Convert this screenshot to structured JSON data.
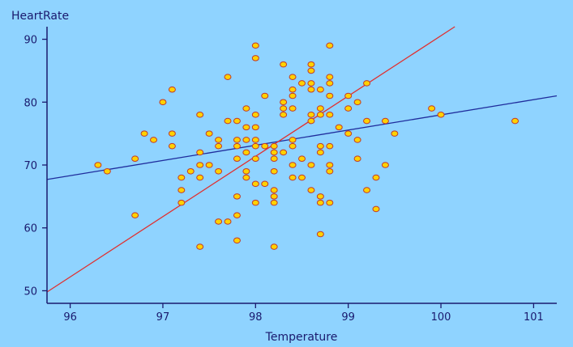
{
  "chart_data": {
    "type": "scatter",
    "title": "",
    "xlabel": "Temperature",
    "ylabel": "HeartRate",
    "xlim": [
      95.75,
      101.25
    ],
    "ylim": [
      48,
      92
    ],
    "x_ticks": [
      "96",
      "97",
      "98",
      "99",
      "100",
      "101"
    ],
    "y_ticks": [
      "50",
      "60",
      "70",
      "80",
      "90"
    ],
    "grid": false,
    "colors": {
      "background": "#8fd3ff",
      "axis": "#1a1a6e",
      "point_fill": "#ffd200",
      "point_stroke": "#c0392b",
      "blue_line": "#1f2c9c",
      "red_line": "#e03030"
    },
    "series": [
      {
        "points": [
          [
            96.3,
            70
          ],
          [
            96.4,
            69
          ],
          [
            96.7,
            71
          ],
          [
            96.7,
            62
          ],
          [
            96.8,
            75
          ],
          [
            96.9,
            74
          ],
          [
            97.0,
            80
          ],
          [
            97.1,
            82
          ],
          [
            97.1,
            75
          ],
          [
            97.1,
            73
          ],
          [
            97.2,
            68
          ],
          [
            97.2,
            66
          ],
          [
            97.2,
            64
          ],
          [
            97.3,
            69
          ],
          [
            97.4,
            78
          ],
          [
            97.4,
            72
          ],
          [
            97.4,
            70
          ],
          [
            97.4,
            68
          ],
          [
            97.4,
            57
          ],
          [
            97.5,
            75
          ],
          [
            97.5,
            70
          ],
          [
            97.6,
            74
          ],
          [
            97.6,
            73
          ],
          [
            97.6,
            69
          ],
          [
            97.6,
            61
          ],
          [
            97.7,
            84
          ],
          [
            97.7,
            77
          ],
          [
            97.7,
            61
          ],
          [
            97.8,
            77
          ],
          [
            97.8,
            74
          ],
          [
            97.8,
            73
          ],
          [
            97.8,
            71
          ],
          [
            97.8,
            65
          ],
          [
            97.8,
            62
          ],
          [
            97.8,
            58
          ],
          [
            97.9,
            79
          ],
          [
            97.9,
            76
          ],
          [
            97.9,
            74
          ],
          [
            97.9,
            72
          ],
          [
            97.9,
            69
          ],
          [
            97.9,
            68
          ],
          [
            98.0,
            89
          ],
          [
            98.0,
            87
          ],
          [
            98.0,
            78
          ],
          [
            98.0,
            76
          ],
          [
            98.0,
            74
          ],
          [
            98.0,
            73
          ],
          [
            98.0,
            71
          ],
          [
            98.0,
            67
          ],
          [
            98.0,
            64
          ],
          [
            98.1,
            81
          ],
          [
            98.1,
            73
          ],
          [
            98.1,
            67
          ],
          [
            98.2,
            73
          ],
          [
            98.2,
            72
          ],
          [
            98.2,
            71
          ],
          [
            98.2,
            69
          ],
          [
            98.2,
            66
          ],
          [
            98.2,
            65
          ],
          [
            98.2,
            64
          ],
          [
            98.2,
            57
          ],
          [
            98.3,
            86
          ],
          [
            98.3,
            80
          ],
          [
            98.3,
            79
          ],
          [
            98.3,
            78
          ],
          [
            98.3,
            72
          ],
          [
            98.4,
            84
          ],
          [
            98.4,
            82
          ],
          [
            98.4,
            81
          ],
          [
            98.4,
            79
          ],
          [
            98.4,
            74
          ],
          [
            98.4,
            73
          ],
          [
            98.4,
            70
          ],
          [
            98.4,
            68
          ],
          [
            98.5,
            83
          ],
          [
            98.5,
            71
          ],
          [
            98.5,
            68
          ],
          [
            98.6,
            86
          ],
          [
            98.6,
            85
          ],
          [
            98.6,
            83
          ],
          [
            98.6,
            82
          ],
          [
            98.6,
            78
          ],
          [
            98.6,
            77
          ],
          [
            98.6,
            70
          ],
          [
            98.6,
            66
          ],
          [
            98.7,
            82
          ],
          [
            98.7,
            79
          ],
          [
            98.7,
            78
          ],
          [
            98.7,
            73
          ],
          [
            98.7,
            72
          ],
          [
            98.7,
            65
          ],
          [
            98.7,
            64
          ],
          [
            98.7,
            59
          ],
          [
            98.8,
            89
          ],
          [
            98.8,
            84
          ],
          [
            98.8,
            83
          ],
          [
            98.8,
            81
          ],
          [
            98.8,
            78
          ],
          [
            98.8,
            73
          ],
          [
            98.8,
            70
          ],
          [
            98.8,
            69
          ],
          [
            98.8,
            64
          ],
          [
            98.9,
            76
          ],
          [
            99.0,
            81
          ],
          [
            99.0,
            79
          ],
          [
            99.0,
            75
          ],
          [
            99.1,
            80
          ],
          [
            99.1,
            74
          ],
          [
            99.1,
            71
          ],
          [
            99.2,
            83
          ],
          [
            99.2,
            77
          ],
          [
            99.2,
            66
          ],
          [
            99.3,
            68
          ],
          [
            99.3,
            63
          ],
          [
            99.4,
            77
          ],
          [
            99.4,
            70
          ],
          [
            99.5,
            75
          ],
          [
            99.9,
            79
          ],
          [
            100.0,
            78
          ],
          [
            100.8,
            77
          ]
        ]
      }
    ],
    "lines": [
      {
        "color_key": "blue_line",
        "from": [
          95.75,
          67.7
        ],
        "to": [
          101.25,
          81.0
        ]
      },
      {
        "color_key": "red_line",
        "from": [
          95.75,
          49.8
        ],
        "to": [
          100.15,
          92.0
        ]
      }
    ]
  }
}
